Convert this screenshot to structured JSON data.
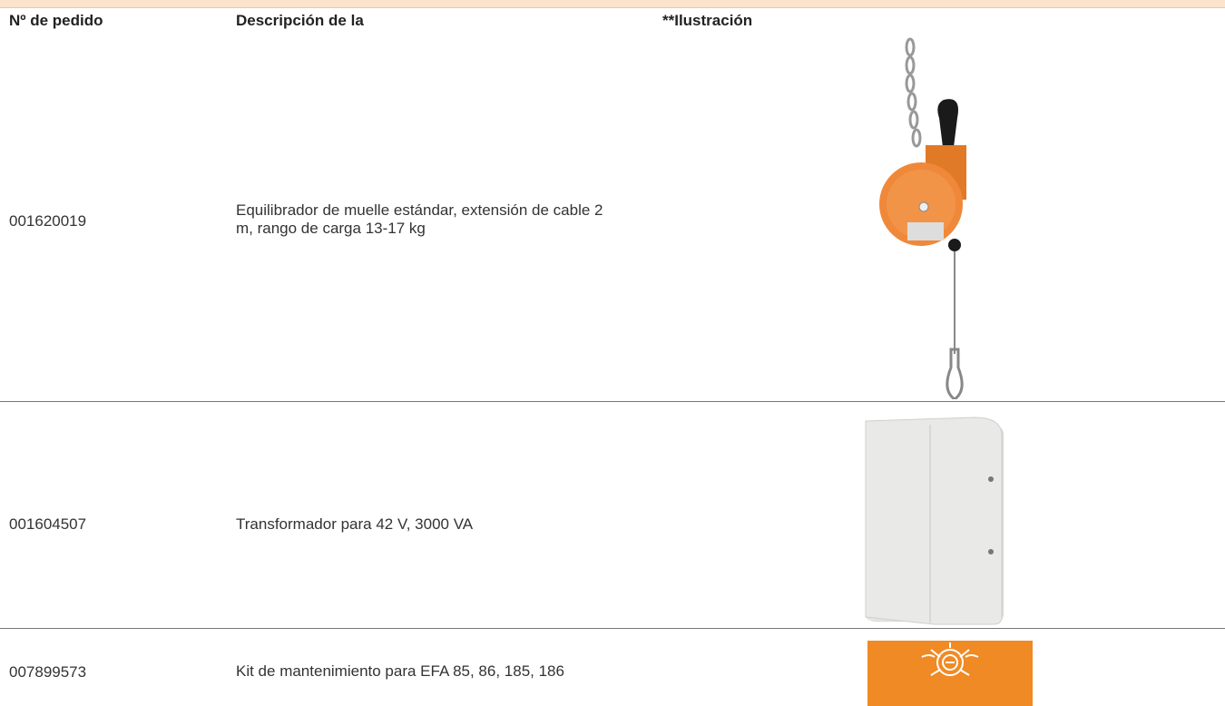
{
  "table": {
    "columns": [
      "Nº de pedido",
      "Descripción de la",
      "**Ilustración"
    ],
    "rows": [
      [
        "001620019",
        "Equilibrador de muelle estándar, extensión de cable 2 m, rango de carga 13-17 kg"
      ],
      [
        "001604507",
        "Transformador para 42 V, 3000 VA"
      ],
      [
        "007899573",
        "Kit de mantenimiento para EFA 85, 86, 185, 186"
      ]
    ]
  }
}
